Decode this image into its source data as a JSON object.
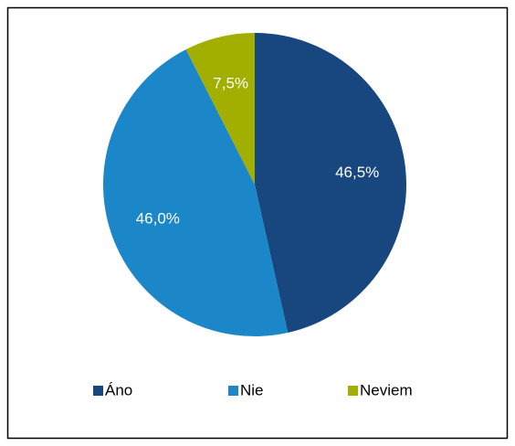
{
  "chart_data": {
    "type": "pie",
    "categories": [
      "Áno",
      "Nie",
      "Neviem"
    ],
    "values": [
      46.5,
      46.0,
      7.5
    ],
    "value_labels": [
      "46,5%",
      "46,0%",
      "7,5%"
    ],
    "colors": [
      "#17477e",
      "#1b87c9",
      "#a2ae00"
    ],
    "legend": "bottom"
  }
}
